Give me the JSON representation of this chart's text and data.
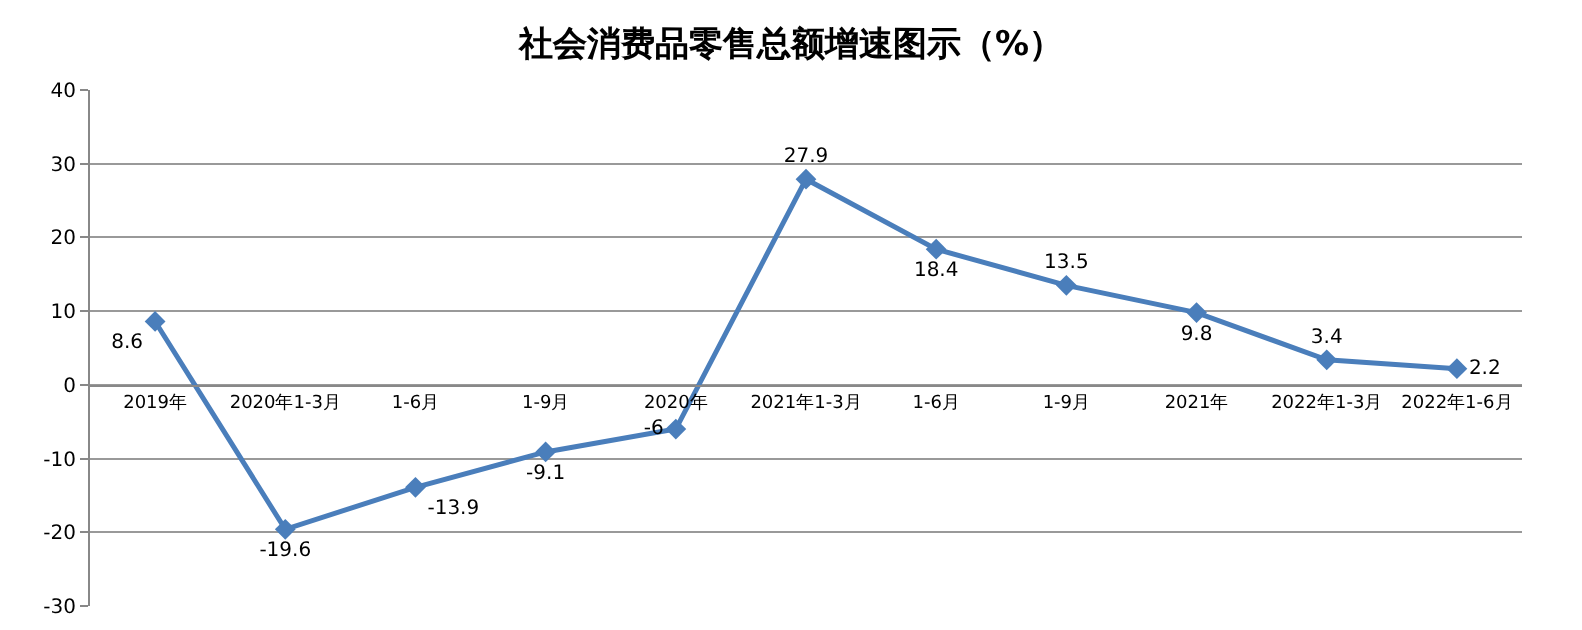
{
  "chart_data": {
    "type": "line",
    "title": "社会消费品零售总额增速图示（%）",
    "categories": [
      "2019年",
      "2020年1-3月",
      "1-6月",
      "1-9月",
      "2020年",
      "2021年1-3月",
      "1-6月",
      "1-9月",
      "2021年",
      "2022年1-3月",
      "2022年1-6月"
    ],
    "series": [
      {
        "color": "#4a7ebb",
        "values": [
          8.6,
          -19.6,
          -13.9,
          -9.1,
          -6,
          27.9,
          18.4,
          13.5,
          9.8,
          3.4,
          2.2
        ]
      }
    ],
    "ylim": [
      -30,
      40
    ],
    "yticks": [
      -30,
      -20,
      -10,
      0,
      10,
      20,
      30,
      40
    ],
    "grid": "y",
    "marker": "diamond",
    "line_style": "solid",
    "data_labels": true
  }
}
